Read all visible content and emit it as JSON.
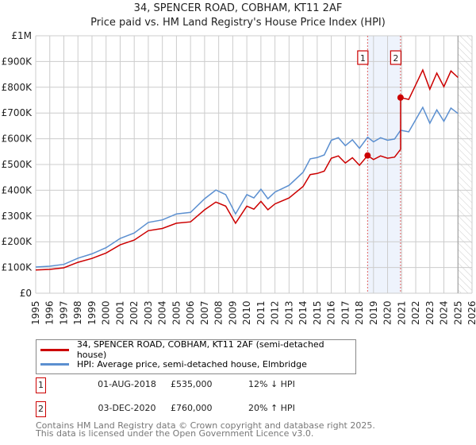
{
  "header": {
    "title": "34, SPENCER ROAD, COBHAM, KT11 2AF",
    "subtitle": "Price paid vs. HM Land Registry's House Price Index (HPI)"
  },
  "chart_data": {
    "type": "line",
    "title": "34, SPENCER ROAD, COBHAM, KT11 2AF",
    "subtitle": "Price paid vs. HM Land Registry's House Price Index (HPI)",
    "xlim": [
      1995,
      2026
    ],
    "ylim": [
      0,
      1000000
    ],
    "x_ticks": [
      "1995",
      "1996",
      "1997",
      "1998",
      "1999",
      "2000",
      "2001",
      "2002",
      "2003",
      "2004",
      "2005",
      "2006",
      "2007",
      "2008",
      "2009",
      "2010",
      "2011",
      "2012",
      "2013",
      "2014",
      "2015",
      "2016",
      "2017",
      "2018",
      "2019",
      "2020",
      "2021",
      "2022",
      "2023",
      "2024",
      "2025",
      "2026"
    ],
    "y_ticks": [
      {
        "v": 0,
        "label": "£0"
      },
      {
        "v": 100000,
        "label": "£100K"
      },
      {
        "v": 200000,
        "label": "£200K"
      },
      {
        "v": 300000,
        "label": "£300K"
      },
      {
        "v": 400000,
        "label": "£400K"
      },
      {
        "v": 500000,
        "label": "£500K"
      },
      {
        "v": 600000,
        "label": "£600K"
      },
      {
        "v": 700000,
        "label": "£700K"
      },
      {
        "v": 800000,
        "label": "£800K"
      },
      {
        "v": 900000,
        "label": "£900K"
      },
      {
        "v": 1000000,
        "label": "£1M"
      }
    ],
    "grid": true,
    "legend_placement": "below",
    "series": [
      {
        "name": "HPI: Average price, semi-detached house, Elmbridge",
        "color": "#5b8fd0",
        "x": [
          1995,
          1996,
          1997,
          1998,
          1999,
          2000,
          2001,
          2002,
          2003,
          2004,
          2005,
          2006,
          2007,
          2007.8,
          2008.5,
          2009.2,
          2010,
          2010.5,
          2011,
          2011.5,
          2012,
          2013,
          2014,
          2014.5,
          2015,
          2015.5,
          2016,
          2016.5,
          2017,
          2017.5,
          2018,
          2018.58,
          2019,
          2019.5,
          2020,
          2020.5,
          2020.92,
          2021.5,
          2022,
          2022.5,
          2023,
          2023.5,
          2024,
          2024.5,
          2025
        ],
        "y": [
          102000,
          105000,
          112000,
          136000,
          153000,
          177000,
          213000,
          234000,
          275000,
          285000,
          308000,
          314000,
          367000,
          401000,
          383000,
          308000,
          383000,
          370000,
          404000,
          367000,
          393000,
          419000,
          470000,
          522000,
          527000,
          537000,
          594000,
          604000,
          573000,
          596000,
          563000,
          606000,
          588000,
          604000,
          594000,
          599000,
          633000,
          627000,
          674000,
          722000,
          660000,
          712000,
          668000,
          719000,
          698000
        ]
      },
      {
        "name": "34, SPENCER ROAD, COBHAM, KT11 2AF (semi-detached house)",
        "color": "#cc0000",
        "derived_from_hpi": true
      }
    ],
    "sales": [
      {
        "id": "1",
        "x": 2018.58,
        "price": 535000
      },
      {
        "id": "2",
        "x": 2020.92,
        "price": 760000
      }
    ],
    "forecast_hatch_from": 2025.0
  },
  "legend": [
    {
      "label": "34, SPENCER ROAD, COBHAM, KT11 2AF (semi-detached house)",
      "color": "#cc0000"
    },
    {
      "label": "HPI: Average price, semi-detached house, Elmbridge",
      "color": "#5b8fd0"
    }
  ],
  "sales_table": [
    {
      "num": "1",
      "date": "01-AUG-2018",
      "price": "£535,000",
      "delta": "12% ↓ HPI"
    },
    {
      "num": "2",
      "date": "03-DEC-2020",
      "price": "£760,000",
      "delta": "20% ↑ HPI"
    }
  ],
  "footer": {
    "line1": "Contains HM Land Registry data © Crown copyright and database right 2025.",
    "line2": "This data is licensed under the Open Government Licence v3.0."
  }
}
